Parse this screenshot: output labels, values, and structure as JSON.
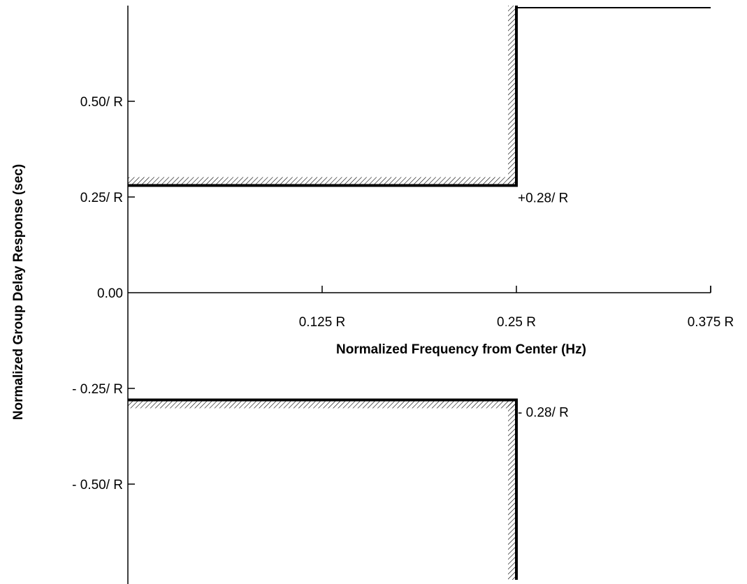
{
  "chart_data": {
    "type": "line",
    "title": "",
    "xlabel": "Normalized Frequency from Center (Hz)",
    "ylabel": "Normalized Group Delay Response (sec)",
    "x_ticks": [
      {
        "value": 0.125,
        "label": "0.125 R"
      },
      {
        "value": 0.25,
        "label": "0.25 R"
      },
      {
        "value": 0.375,
        "label": "0.375 R"
      }
    ],
    "y_ticks": [
      {
        "value": 0.5,
        "label": "0.50/ R"
      },
      {
        "value": 0.25,
        "label": "0.25/ R"
      },
      {
        "value": 0.0,
        "label": "0.00"
      },
      {
        "value": -0.25,
        "label": "- 0.25/ R"
      },
      {
        "value": -0.5,
        "label": "- 0.50/ R"
      }
    ],
    "xlim": [
      0,
      0.375
    ],
    "ylim": [
      -0.75,
      0.75
    ],
    "grid": false,
    "series": [
      {
        "x": [
          0,
          0.25,
          0.25,
          0.375
        ],
        "y": [
          0.28,
          0.28,
          0.75,
          0.75
        ]
      },
      {
        "x": [
          0,
          0.25,
          0.25
        ],
        "y": [
          -0.28,
          -0.28,
          -0.75
        ]
      }
    ],
    "annotations": [
      {
        "text": "+0.28/ R",
        "x": 0.25,
        "y": 0.28
      },
      {
        "text": "- 0.28/ R",
        "x": 0.25,
        "y": -0.28
      }
    ]
  }
}
